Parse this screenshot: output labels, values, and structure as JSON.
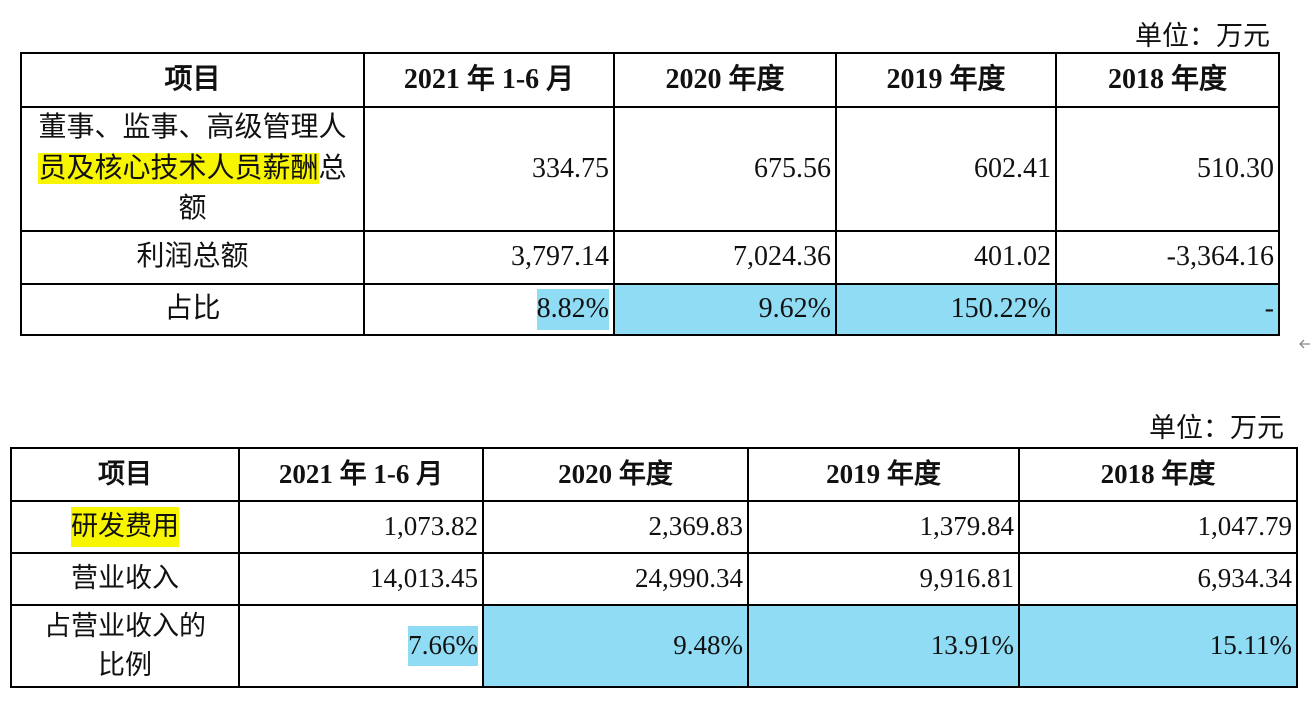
{
  "tables": [
    {
      "unit": "单位：万元",
      "header": [
        "项目",
        "2021 年 1-6 月",
        "2020 年度",
        "2019 年度",
        "2018 年度"
      ],
      "rows": [
        [
          [
            "董事、监事、高级管理人",
            "员及核心技术人员薪酬",
            "总额"
          ],
          "334.75",
          "675.56",
          "602.41",
          "510.30"
        ],
        [
          "利润总额",
          "3,797.14",
          "7,024.36",
          "401.02",
          "-3,364.16"
        ],
        [
          "占比",
          "8.82%",
          "9.62%",
          "150.22%",
          "-"
        ]
      ]
    },
    {
      "unit": "单位：万元",
      "header": [
        "项目",
        "2021 年 1-6 月",
        "2020 年度",
        "2019 年度",
        "2018 年度"
      ],
      "rows": [
        [
          "研发费用",
          "1,073.82",
          "2,369.83",
          "1,379.84",
          "1,047.79"
        ],
        [
          "营业收入",
          "14,013.45",
          "24,990.34",
          "9,916.81",
          "6,934.34"
        ],
        [
          "占营业收入的比例",
          "7.66%",
          "9.48%",
          "13.91%",
          "15.11%"
        ]
      ]
    }
  ]
}
